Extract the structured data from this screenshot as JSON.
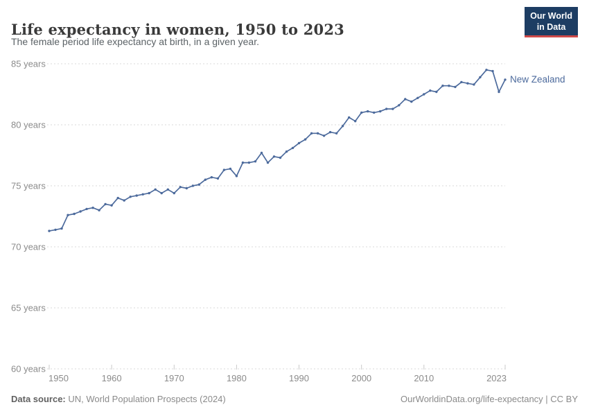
{
  "header": {
    "title": "Life expectancy in women, 1950 to 2023",
    "subtitle": "The female period life expectancy at birth, in a given year.",
    "logo": {
      "line1": "Our World",
      "line2": "in Data"
    }
  },
  "footer": {
    "source_label": "Data source:",
    "source_text": " UN, World Population Prospects (2024)",
    "attribution": "OurWorldinData.org/life-expectancy | CC BY"
  },
  "colors": {
    "series": "#4C6A9C",
    "logo_bg": "#1d3d63",
    "logo_accent": "#cf4a49",
    "grid": "#d9d9d9",
    "tick": "#c9c9c9",
    "axis_text": "#8b8b8b"
  },
  "chart_data": {
    "type": "line",
    "title": "Life expectancy in women, 1950 to 2023",
    "subtitle": "The female period life expectancy at birth, in a given year.",
    "xlabel": "",
    "ylabel": "",
    "xlim": [
      1950,
      2023
    ],
    "ylim": [
      60,
      85
    ],
    "x_ticks": [
      1950,
      1960,
      1970,
      1980,
      1990,
      2000,
      2010,
      2023
    ],
    "y_ticks": [
      85,
      80,
      75,
      70,
      65,
      60
    ],
    "y_tick_suffix": " years",
    "grid": "dashed-horizontal",
    "legend_position": "end-of-line-label",
    "series": [
      {
        "name": "New Zealand",
        "color": "#4C6A9C",
        "x": [
          1950,
          1951,
          1952,
          1953,
          1954,
          1955,
          1956,
          1957,
          1958,
          1959,
          1960,
          1961,
          1962,
          1963,
          1964,
          1965,
          1966,
          1967,
          1968,
          1969,
          1970,
          1971,
          1972,
          1973,
          1974,
          1975,
          1976,
          1977,
          1978,
          1979,
          1980,
          1981,
          1982,
          1983,
          1984,
          1985,
          1986,
          1987,
          1988,
          1989,
          1990,
          1991,
          1992,
          1993,
          1994,
          1995,
          1996,
          1997,
          1998,
          1999,
          2000,
          2001,
          2002,
          2003,
          2004,
          2005,
          2006,
          2007,
          2008,
          2009,
          2010,
          2011,
          2012,
          2013,
          2014,
          2015,
          2016,
          2017,
          2018,
          2019,
          2020,
          2021,
          2022,
          2023
        ],
        "values": [
          71.3,
          71.4,
          71.5,
          72.6,
          72.7,
          72.9,
          73.1,
          73.2,
          73.0,
          73.5,
          73.4,
          74.0,
          73.8,
          74.1,
          74.2,
          74.3,
          74.4,
          74.7,
          74.4,
          74.7,
          74.4,
          74.9,
          74.8,
          75.0,
          75.1,
          75.5,
          75.7,
          75.6,
          76.3,
          76.4,
          75.8,
          76.9,
          76.9,
          77.0,
          77.7,
          76.9,
          77.4,
          77.3,
          77.8,
          78.1,
          78.5,
          78.8,
          79.3,
          79.3,
          79.1,
          79.4,
          79.3,
          79.9,
          80.6,
          80.3,
          81.0,
          81.1,
          81.0,
          81.1,
          81.3,
          81.3,
          81.6,
          82.1,
          81.9,
          82.2,
          82.5,
          82.8,
          82.7,
          83.2,
          83.2,
          83.1,
          83.5,
          83.4,
          83.3,
          83.9,
          84.5,
          84.4,
          82.7,
          83.7
        ]
      }
    ]
  }
}
